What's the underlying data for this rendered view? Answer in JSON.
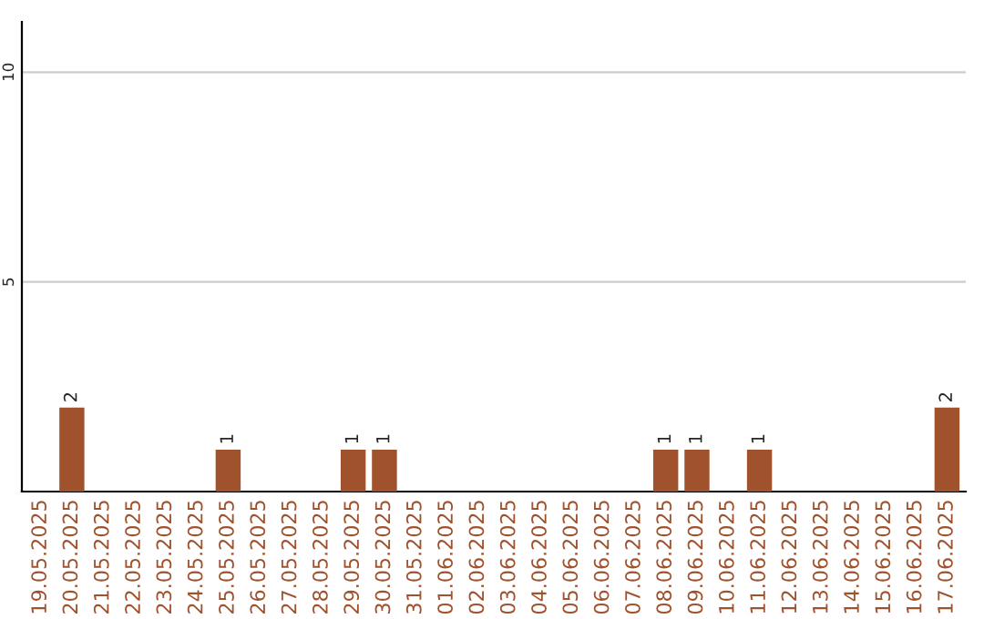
{
  "chart_data": {
    "type": "bar",
    "categories": [
      "19.05.2025",
      "20.05.2025",
      "21.05.2025",
      "22.05.2025",
      "23.05.2025",
      "24.05.2025",
      "25.05.2025",
      "26.05.2025",
      "27.05.2025",
      "28.05.2025",
      "29.05.2025",
      "30.05.2025",
      "31.05.2025",
      "01.06.2025",
      "02.06.2025",
      "03.06.2025",
      "04.06.2025",
      "05.06.2025",
      "06.06.2025",
      "07.06.2025",
      "08.06.2025",
      "09.06.2025",
      "10.06.2025",
      "11.06.2025",
      "12.06.2025",
      "13.06.2025",
      "14.06.2025",
      "15.06.2025",
      "16.06.2025",
      "17.06.2025"
    ],
    "values": [
      0,
      2,
      0,
      0,
      0,
      0,
      1,
      0,
      0,
      0,
      1,
      1,
      0,
      0,
      0,
      0,
      0,
      0,
      0,
      0,
      1,
      1,
      0,
      1,
      0,
      0,
      0,
      0,
      0,
      2
    ],
    "value_labels": [
      null,
      "2",
      null,
      null,
      null,
      null,
      "1",
      null,
      null,
      null,
      "1",
      "1",
      null,
      null,
      null,
      null,
      null,
      null,
      null,
      null,
      "1",
      "1",
      null,
      "1",
      null,
      null,
      null,
      null,
      null,
      "2"
    ],
    "color": "#a0522d",
    "ylim": [
      0,
      11.2
    ],
    "yticks": [
      5,
      10
    ],
    "grid": "y"
  }
}
